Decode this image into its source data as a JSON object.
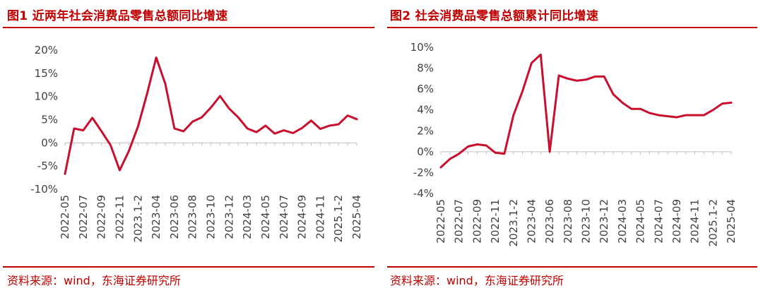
{
  "left": {
    "title": "图1  近两年社会消费品零售总额同比增速",
    "source": "资料来源：wind，东海证券研究所",
    "chart_data": {
      "type": "line",
      "title": "",
      "xlabel": "",
      "ylabel": "",
      "line_color": "#c8102e",
      "grid": false,
      "ylim": [
        -10,
        20
      ],
      "y_ticks": [
        -10,
        -5,
        0,
        5,
        10,
        15,
        20
      ],
      "y_tick_labels": [
        "-10%",
        "-5%",
        "0%",
        "5%",
        "10%",
        "15%",
        "20%"
      ],
      "x_tick_labels": [
        "2022-05",
        "2022-07",
        "2022-09",
        "2022-11",
        "2023.1-2",
        "2023-04",
        "2023-06",
        "2023-08",
        "2023-10",
        "2023-12",
        "2024-03",
        "2024-05",
        "2024-07",
        "2024-09",
        "2024-11",
        "2025.1-2",
        "2025-04"
      ],
      "x": [
        "2022-05",
        "2022-06",
        "2022-07",
        "2022-08",
        "2022-09",
        "2022-10",
        "2022-11",
        "2022-12",
        "2023.1-2",
        "2023-03",
        "2023-04",
        "2023-05",
        "2023-06",
        "2023-07",
        "2023-08",
        "2023-09",
        "2023-10",
        "2023-11",
        "2023-12",
        "2024.1-2",
        "2024-03",
        "2024-04",
        "2024-05",
        "2024-06",
        "2024-07",
        "2024-08",
        "2024-09",
        "2024-10",
        "2024-11",
        "2024-12",
        "2025.1-2",
        "2025-03",
        "2025-04"
      ],
      "series": [
        {
          "values": [
            -6.7,
            3.1,
            2.7,
            5.4,
            2.5,
            -0.5,
            -5.9,
            -1.8,
            3.5,
            10.6,
            18.4,
            12.7,
            3.1,
            2.5,
            4.6,
            5.5,
            7.6,
            10.1,
            7.4,
            5.5,
            3.1,
            2.3,
            3.7,
            2.0,
            2.7,
            2.1,
            3.2,
            4.8,
            3.0,
            3.7,
            4.0,
            5.9,
            5.1
          ]
        }
      ]
    }
  },
  "right": {
    "title": "图2  社会消费品零售总额累计同比增速",
    "source": "资料来源：wind，东海证券研究所",
    "chart_data": {
      "type": "line",
      "title": "",
      "xlabel": "",
      "ylabel": "",
      "line_color": "#c8102e",
      "grid": false,
      "ylim": [
        -4,
        10
      ],
      "y_ticks": [
        -4,
        -2,
        0,
        2,
        4,
        6,
        8,
        10
      ],
      "y_tick_labels": [
        "-4%",
        "-2%",
        "0%",
        "2%",
        "4%",
        "6%",
        "8%",
        "10%"
      ],
      "x_tick_labels": [
        "2022-05",
        "2022-07",
        "2022-09",
        "2022-11",
        "2023.1-2",
        "2023-04",
        "2023-06",
        "2023-08",
        "2023-10",
        "2023-12",
        "2024-03",
        "2024-05",
        "2024-07",
        "2024-09",
        "2024-11",
        "2025.1-2",
        "2025-04"
      ],
      "x": [
        "2022-05",
        "2022-06",
        "2022-07",
        "2022-08",
        "2022-09",
        "2022-10",
        "2022-11",
        "2022-12",
        "2023.1-2",
        "2023-03",
        "2023-04",
        "2023-05",
        "2023-06",
        "2023-07",
        "2023-08",
        "2023-09",
        "2023-10",
        "2023-11",
        "2023-12",
        "2024.1-2",
        "2024-03",
        "2024-04",
        "2024-05",
        "2024-06",
        "2024-07",
        "2024-08",
        "2024-09",
        "2024-10",
        "2024-11",
        "2024-12",
        "2025.1-2",
        "2025-03",
        "2025-04"
      ],
      "series": [
        {
          "values": [
            -1.5,
            -0.7,
            -0.2,
            0.5,
            0.7,
            0.6,
            -0.1,
            -0.2,
            3.5,
            5.8,
            8.5,
            9.3,
            0.0,
            7.3,
            7.0,
            6.8,
            6.9,
            7.2,
            7.2,
            5.5,
            4.7,
            4.1,
            4.1,
            3.7,
            3.5,
            3.4,
            3.3,
            3.5,
            3.5,
            3.5,
            4.0,
            4.6,
            4.7
          ]
        }
      ]
    }
  }
}
